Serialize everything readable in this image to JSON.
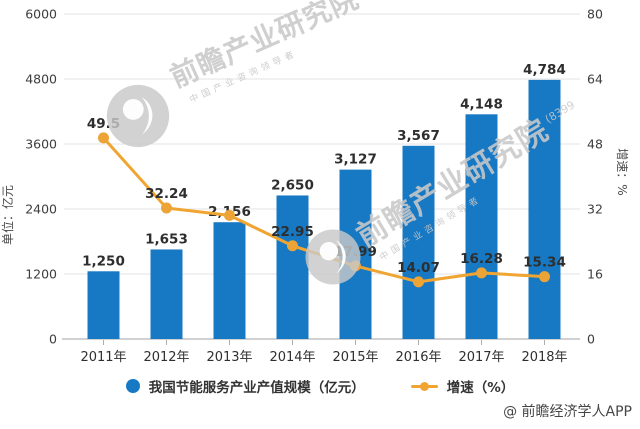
{
  "watermark": {
    "brand": "前瞻产业研究院",
    "tagline": "中国产业咨询领导者",
    "digits": "(8399",
    "color": "#cccccc"
  },
  "attribution": "@ 前瞻经济学人APP",
  "legend": {
    "items": [
      {
        "label": "我国节能服务产业产值规模（亿元）",
        "marker": "circle",
        "color": "#1778c3"
      },
      {
        "label": "增速（%）",
        "marker": "line-dot",
        "color": "#f0a431"
      }
    ]
  },
  "chart_data": {
    "type": "bar+line combo",
    "categories": [
      "2011年",
      "2012年",
      "2013年",
      "2014年",
      "2015年",
      "2016年",
      "2017年",
      "2018年"
    ],
    "series": [
      {
        "name": "我国节能服务产业产值规模（亿元）",
        "type": "bar",
        "axis": "left",
        "color": "#1778c3",
        "values": [
          1250,
          1653,
          2156,
          2650,
          3127,
          3567,
          4148,
          4784
        ],
        "labels": [
          "1,250",
          "1,653",
          "2,156",
          "2,650",
          "3,127",
          "3,567",
          "4,148",
          "4,784"
        ]
      },
      {
        "name": "增速（%）",
        "type": "line",
        "axis": "right",
        "color": "#f0a431",
        "marker_color": "#eca437",
        "values": [
          49.5,
          32.24,
          30.43,
          22.95,
          17.99,
          14.07,
          16.28,
          15.34
        ],
        "labels": [
          "49.5",
          "32.24",
          "",
          "22.95",
          "17.99",
          "14.07",
          "16.28",
          "15.34"
        ]
      }
    ],
    "left_axis": {
      "title": "单位：亿元",
      "min": 0,
      "max": 6000,
      "ticks": [
        "6000",
        "4800",
        "3600",
        "2400",
        "1200",
        "0"
      ]
    },
    "right_axis": {
      "title": "增速：%",
      "min": 0,
      "max": 80,
      "ticks": [
        "80",
        "64",
        "48",
        "32",
        "16",
        "0"
      ]
    },
    "grid": true,
    "legend_position": "bottom",
    "label_colors": {
      "data_label": "#2e2e2e",
      "tick_label": "#3d3d3d",
      "category_label": "#2f2f2f",
      "axis_title": "#4a4a4a"
    }
  }
}
